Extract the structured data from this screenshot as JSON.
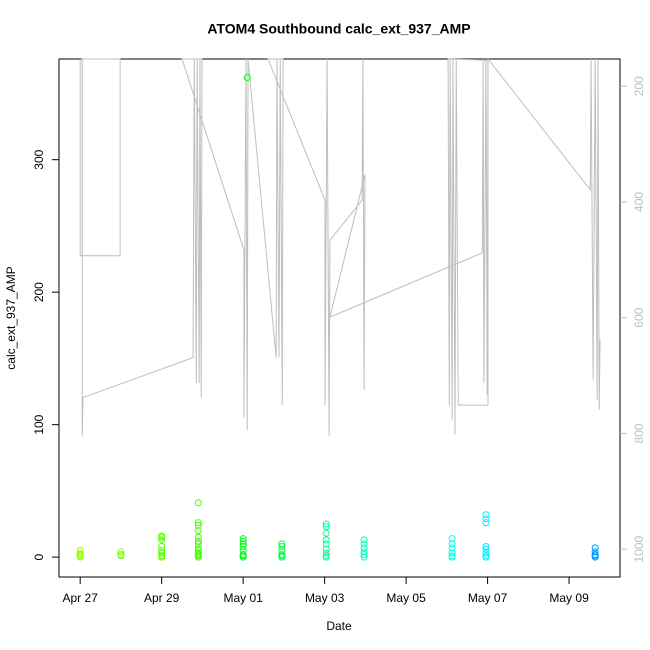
{
  "chart_data": {
    "type": "scatter",
    "title": "ATOM4 Southbound calc_ext_937_AMP",
    "x_label": "Date",
    "y_label": "calc_ext_937_AMP",
    "xlim": [
      -0.52,
      13.25
    ],
    "xticks": [
      {
        "value": 0,
        "label": "Apr 27"
      },
      {
        "value": 2,
        "label": "Apr 29"
      },
      {
        "value": 4,
        "label": "May 01"
      },
      {
        "value": 6,
        "label": "May 03"
      },
      {
        "value": 8,
        "label": "May 05"
      },
      {
        "value": 10,
        "label": "May 07"
      },
      {
        "value": 12,
        "label": "May 09"
      }
    ],
    "ylim": [
      -15,
      376
    ],
    "yticks": [
      0,
      100,
      200,
      300
    ],
    "y2lim": [
      1048,
      153
    ],
    "y2ticks": [
      200,
      400,
      600,
      800,
      1000
    ],
    "series": [
      {
        "type": "scatter",
        "x": [
          0,
          0,
          0,
          0,
          0,
          1,
          1,
          1,
          2,
          2,
          2,
          2,
          2,
          2,
          2,
          2,
          2.9,
          2.9,
          2.9,
          2.9,
          2.9,
          2.9,
          2.9,
          2.9,
          2.9,
          2.9,
          2.9,
          2.9,
          2.9,
          4,
          4,
          4,
          4,
          4,
          4,
          4,
          4,
          4.1,
          4.95,
          4.95,
          4.95,
          4.95,
          4.95,
          4.95,
          6.04,
          6.04,
          6.04,
          6.04,
          6.04,
          6.04,
          6.04,
          6.04,
          6.04,
          6.97,
          6.97,
          6.97,
          6.97,
          6.97,
          6.97,
          9.13,
          9.13,
          9.13,
          9.13,
          9.13,
          9.13,
          9.96,
          9.96,
          9.96,
          9.96,
          9.96,
          9.96,
          9.96,
          9.96,
          12.64,
          12.64,
          12.64,
          12.64,
          12.64
        ],
        "values": [
          0,
          1,
          2,
          3,
          5,
          1,
          2,
          4,
          0,
          1,
          3,
          5,
          8,
          13,
          15,
          16,
          0,
          1,
          2,
          3,
          5,
          7,
          10,
          12,
          15,
          20,
          24,
          26,
          41,
          0,
          1,
          2,
          5,
          8,
          10,
          12,
          14,
          362,
          0,
          1,
          2,
          5,
          8,
          10,
          0,
          1,
          3,
          6,
          10,
          13,
          18,
          23,
          25,
          0,
          2,
          4,
          7,
          10,
          13,
          0,
          1,
          3,
          7,
          10,
          14,
          0,
          1,
          3,
          6,
          8,
          26,
          29,
          32,
          0,
          1,
          2,
          4,
          7
        ],
        "colors": [
          "#99ff00",
          "#99ff00",
          "#99ff00",
          "#99ff00",
          "#99ff00",
          "#80ff00",
          "#80ff00",
          "#80ff00",
          "#55ff00",
          "#55ff00",
          "#55ff00",
          "#55ff00",
          "#55ff00",
          "#55ff00",
          "#55ff00",
          "#55ff00",
          "#40ff00",
          "#40ff00",
          "#40ff00",
          "#40ff00",
          "#40ff00",
          "#40ff00",
          "#40ff00",
          "#40ff00",
          "#40ff00",
          "#40ff00",
          "#40ff00",
          "#40ff00",
          "#40ff00",
          "#00ff1a",
          "#00ff1a",
          "#00ff1a",
          "#00ff1a",
          "#00ff1a",
          "#00ff1a",
          "#00ff1a",
          "#00ff1a",
          "#00ff1a",
          "#00ff40",
          "#00ff40",
          "#00ff40",
          "#00ff40",
          "#00ff40",
          "#00ff40",
          "#00ff99",
          "#00ff99",
          "#00ff99",
          "#00ff99",
          "#00ff99",
          "#00ff99",
          "#00ff99",
          "#00ff99",
          "#00ff99",
          "#00ffbb",
          "#00ffbb",
          "#00ffbb",
          "#00ffbb",
          "#00ffbb",
          "#00ffbb",
          "#00ffee",
          "#00ffee",
          "#00ffee",
          "#00ffee",
          "#00ffee",
          "#00ffee",
          "#00eeff",
          "#00eeff",
          "#00eeff",
          "#00eeff",
          "#00eeff",
          "#00eeff",
          "#00eeff",
          "#00eeff",
          "#0099ff",
          "#0099ff",
          "#0099ff",
          "#0099ff",
          "#0099ff"
        ]
      },
      {
        "type": "line",
        "axis": "y2",
        "color": "#bebebe",
        "x": [
          0,
          0,
          0.98,
          0.98,
          0.05,
          0.05,
          0.07,
          2.77,
          2.8,
          2.85,
          2.87,
          2.92,
          2.94,
          2.97,
          2.99,
          2.5,
          4.02,
          4.02,
          4.07,
          4.1,
          4.12,
          4.81,
          4.83,
          4.88,
          4.91,
          4.96,
          4.98,
          4.61,
          6.01,
          6.01,
          6.06,
          6.11,
          6.13,
          6.92,
          6.94,
          6.97,
          6.99,
          6.13,
          9.87,
          9.89,
          9.91,
          9.96,
          9.99,
          10.01,
          9.03,
          9.06,
          9.08,
          9.13,
          9.15,
          9.2,
          9.23,
          9.28,
          10.01,
          10.01,
          12.52,
          12.54,
          12.59,
          12.64,
          12.69,
          12.71,
          12.74,
          12.76
        ],
        "values": [
          153,
          493,
          493,
          153,
          153,
          804,
          738,
          669,
          153,
          713,
          153,
          713,
          153,
          738,
          153,
          153,
          483,
          773,
          153,
          794,
          153,
          669,
          153,
          669,
          153,
          751,
          153,
          153,
          397,
          751,
          153,
          804,
          466,
          397,
          153,
          725,
          353,
          599,
          488,
          153,
          713,
          153,
          733,
          155,
          153,
          751,
          153,
          776,
          153,
          802,
          153,
          751,
          751,
          153,
          379,
          153,
          707,
          153,
          742,
          153,
          759,
          638
        ]
      }
    ]
  }
}
